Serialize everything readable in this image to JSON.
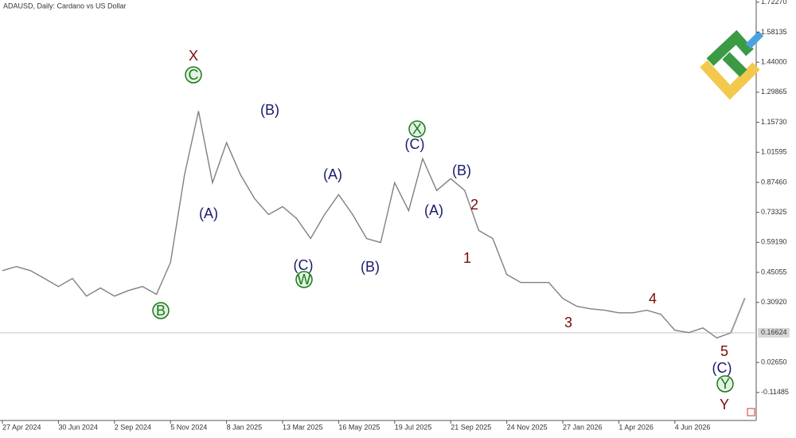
{
  "chart_data": {
    "type": "line",
    "title": "ADAUSD, Daily:  Cardano vs US Dollar",
    "categories": [
      "27 Apr 2024",
      null,
      null,
      null,
      "30 Jun 2024",
      null,
      null,
      null,
      "2 Sep 2024",
      null,
      null,
      null,
      "5 Nov 2024",
      null,
      null,
      null,
      "8 Jan 2025",
      null,
      null,
      null,
      "13 Mar 2025",
      null,
      null,
      null,
      "16 May 2025",
      null,
      null,
      null,
      "19 Jul 2025",
      null,
      null,
      null,
      "21 Sep 2025",
      null,
      null,
      null,
      "24 Nov 2025",
      null,
      null,
      null,
      "27 Jan 2026",
      null,
      null,
      null,
      "1 Apr 2026",
      null,
      null,
      null,
      "4 Jun 2026",
      null,
      null,
      null,
      null,
      null
    ],
    "series": [
      {
        "color": "#808080",
        "values": [
          0.459,
          0.478,
          0.459,
          0.422,
          0.384,
          0.422,
          0.339,
          0.377,
          0.339,
          0.365,
          0.384,
          0.347,
          0.497,
          0.91,
          1.21,
          0.873,
          1.061,
          0.91,
          0.798,
          0.723,
          0.76,
          0.704,
          0.61,
          0.723,
          0.817,
          0.723,
          0.61,
          0.591,
          0.873,
          0.741,
          0.986,
          0.836,
          0.892,
          0.836,
          0.648,
          0.61,
          0.441,
          0.403,
          0.403,
          0.403,
          0.328,
          0.291,
          0.279,
          0.272,
          0.26,
          0.26,
          0.272,
          0.253,
          0.178,
          0.167,
          0.189,
          0.142,
          0.16624,
          null
        ]
      },
      {
        "color": "#a0a0a0",
        "values": [
          null,
          null,
          null,
          null,
          null,
          null,
          null,
          null,
          null,
          null,
          null,
          null,
          null,
          null,
          null,
          null,
          null,
          null,
          null,
          null,
          null,
          null,
          null,
          null,
          null,
          null,
          null,
          null,
          null,
          null,
          null,
          null,
          null,
          null,
          null,
          null,
          null,
          null,
          null,
          null,
          null,
          null,
          null,
          null,
          null,
          null,
          null,
          null,
          null,
          null,
          null,
          null,
          0.16624,
          0.33
        ]
      }
    ],
    "current_price": 0.16624,
    "ylim": [
      -0.243,
      1.733
    ],
    "yticks": [
      {
        "value": 1.7227,
        "label": "1.72270"
      },
      {
        "value": 1.58135,
        "label": "1.58135"
      },
      {
        "value": 1.44,
        "label": "1.44000"
      },
      {
        "value": 1.29865,
        "label": "1.29865"
      },
      {
        "value": 1.1573,
        "label": "1.15730"
      },
      {
        "value": 1.01595,
        "label": "1.01595"
      },
      {
        "value": 0.8746,
        "label": "0.87460"
      },
      {
        "value": 0.73325,
        "label": "0.73325"
      },
      {
        "value": 0.5919,
        "label": "0.59190"
      },
      {
        "value": 0.45055,
        "label": "0.45055"
      },
      {
        "value": 0.3092,
        "label": "0.30920"
      },
      {
        "value": 0.0265,
        "label": "0.02650"
      },
      {
        "value": -0.11485,
        "label": "-0.11485"
      }
    ],
    "annotations": [
      "X",
      "C",
      "(B)",
      "(A)",
      "(A)",
      "(C)",
      "W",
      "(B)",
      "X",
      "(C)",
      "(A)",
      "(B)",
      "2",
      "1",
      "3",
      "4",
      "5",
      "(C)",
      "Y",
      "Y",
      "B"
    ]
  }
}
